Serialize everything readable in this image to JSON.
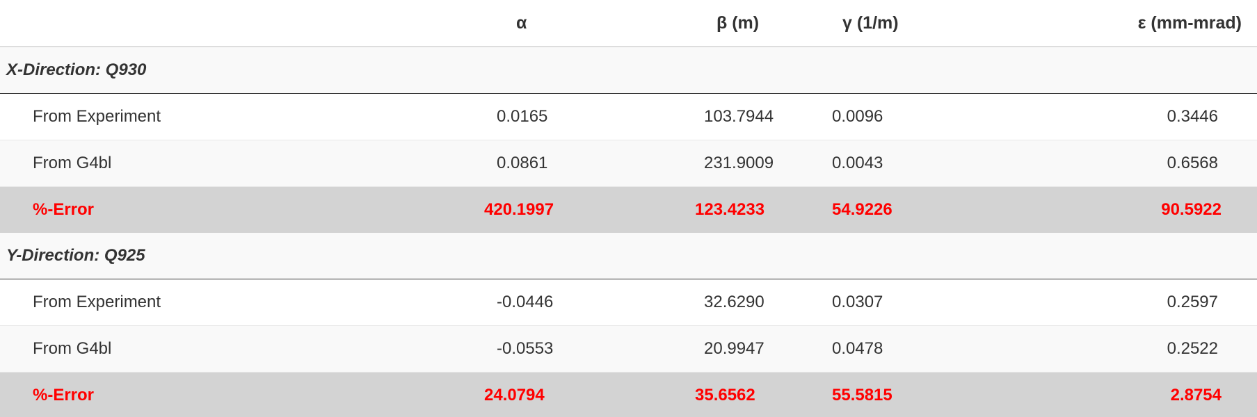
{
  "header": {
    "col_label": "",
    "alpha": "α",
    "beta": "β (m)",
    "gamma": "γ (1/m)",
    "epsilon": "ε (mm-mrad)"
  },
  "groups": [
    {
      "title": "X-Direction: Q930",
      "rows": [
        {
          "label": "From Experiment",
          "alpha": "0.0165",
          "beta": "103.7944",
          "gamma": "0.0096",
          "epsilon": "0.3446"
        },
        {
          "label": "From G4bl",
          "alpha": "0.0861",
          "beta": "231.9009",
          "gamma": "0.0043",
          "epsilon": "0.6568"
        }
      ],
      "error": {
        "label": "%-Error",
        "alpha": "420.1997",
        "beta": "123.4233",
        "gamma": "54.9226",
        "epsilon": "90.5922"
      }
    },
    {
      "title": "Y-Direction: Q925",
      "rows": [
        {
          "label": "From Experiment",
          "alpha": "-0.0446",
          "beta": "32.6290",
          "gamma": "0.0307",
          "epsilon": "0.2597"
        },
        {
          "label": "From G4bl",
          "alpha": "-0.0553",
          "beta": "20.9947",
          "gamma": "0.0478",
          "epsilon": "0.2522"
        }
      ],
      "error": {
        "label": "%-Error",
        "alpha": "24.0794",
        "beta": "35.6562",
        "gamma": "55.5815",
        "epsilon": "2.8754"
      }
    }
  ],
  "colors": {
    "error_text": "#ff0000",
    "error_row_bg": "#d3d3d3",
    "stripe_bg": "#f9f9f9"
  }
}
